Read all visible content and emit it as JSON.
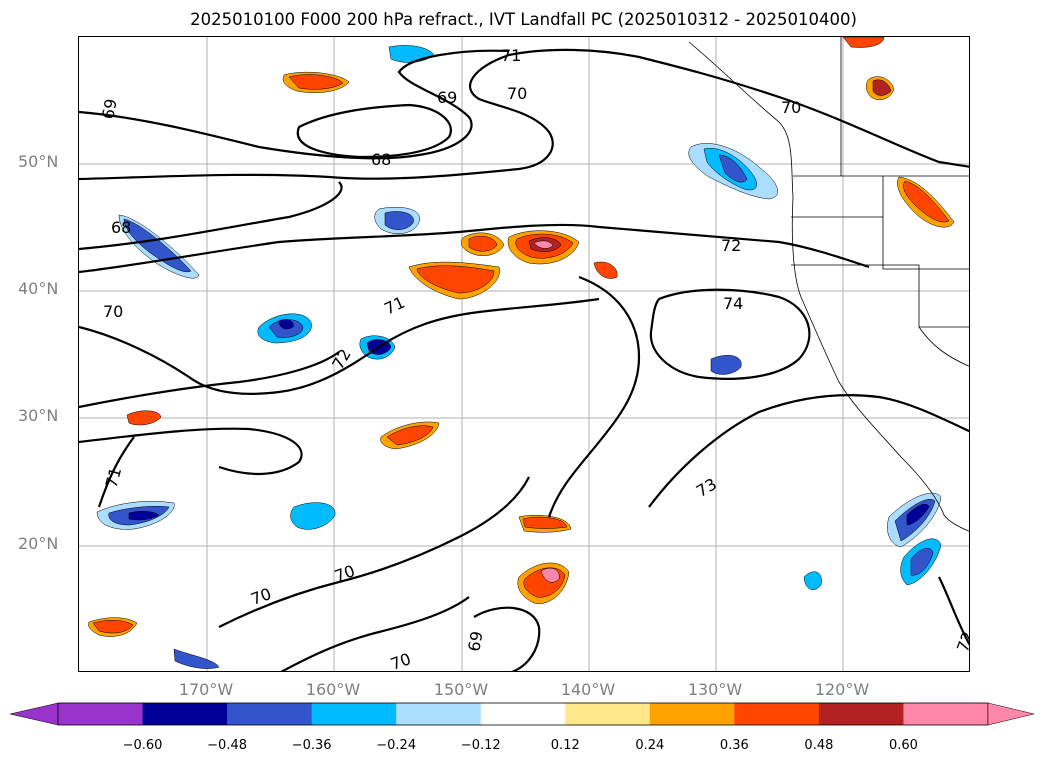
{
  "title": "2025010100 F000 200 hPa refract., IVT Landfall PC (2025010312 - 2025010400)",
  "lat_labels": [
    "50°N",
    "40°N",
    "30°N",
    "20°N"
  ],
  "lon_labels": [
    "170°W",
    "160°W",
    "150°W",
    "140°W",
    "130°W",
    "120°W"
  ],
  "contour_labels": [
    "71",
    "70",
    "69",
    "70",
    "69",
    "68",
    "68",
    "72",
    "70",
    "71",
    "74",
    "72",
    "71",
    "73",
    "70",
    "70",
    "69",
    "70",
    "72"
  ],
  "colorbar": {
    "ticks": [
      "−0.60",
      "−0.48",
      "−0.36",
      "−0.24",
      "−0.12",
      "0.12",
      "0.24",
      "0.36",
      "0.48",
      "0.60"
    ],
    "colors": [
      "#9933cc",
      "#000099",
      "#3355cc",
      "#00bbff",
      "#aaddff",
      "#ffffff",
      "#ffe88a",
      "#ffa200",
      "#ff4500",
      "#b22222",
      "#ff88aa"
    ]
  }
}
